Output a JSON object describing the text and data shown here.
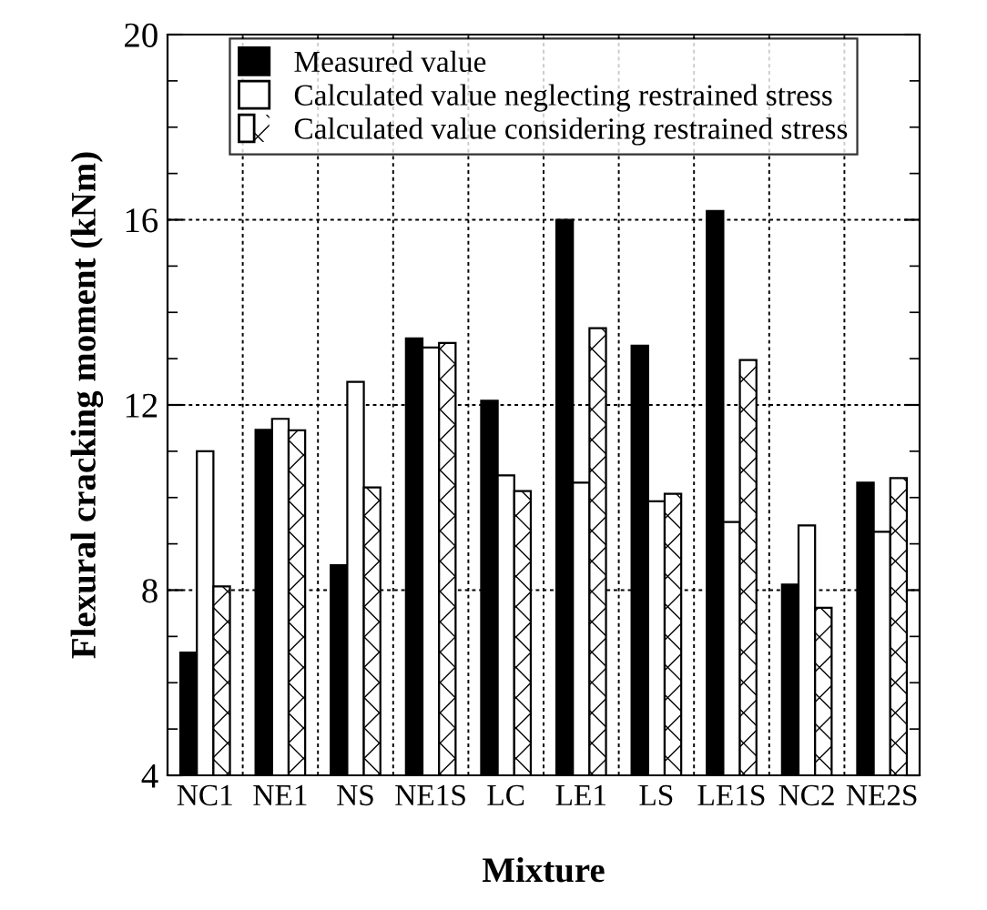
{
  "chart_data": {
    "type": "bar",
    "xlabel": "Mixture",
    "ylabel": "Flexural cracking moment (kNm)",
    "categories": [
      "NC1",
      "NE1",
      "NS",
      "NE1S",
      "LC",
      "LE1",
      "LS",
      "LE1S",
      "NC2",
      "NE2S"
    ],
    "series": [
      {
        "name": "Measured value",
        "color": "#000000",
        "values": [
          6.65,
          11.46,
          8.54,
          13.44,
          12.09,
          16.0,
          13.28,
          16.19,
          8.12,
          10.32
        ]
      },
      {
        "name": "Calculated value neglecting restrained stress",
        "color": "#ffffff",
        "values": [
          11.0,
          11.7,
          12.5,
          13.24,
          10.48,
          10.32,
          9.92,
          9.47,
          9.4,
          9.26
        ]
      },
      {
        "name": "Calculated value considering restrained stress",
        "color": "#ffffff",
        "values": [
          8.08,
          11.45,
          10.22,
          13.34,
          10.14,
          13.66,
          10.08,
          12.97,
          7.62,
          10.42
        ]
      }
    ],
    "ylim": [
      4,
      20
    ],
    "yticks": [
      4,
      8,
      12,
      16,
      20
    ],
    "grid": true,
    "legend": "top"
  }
}
